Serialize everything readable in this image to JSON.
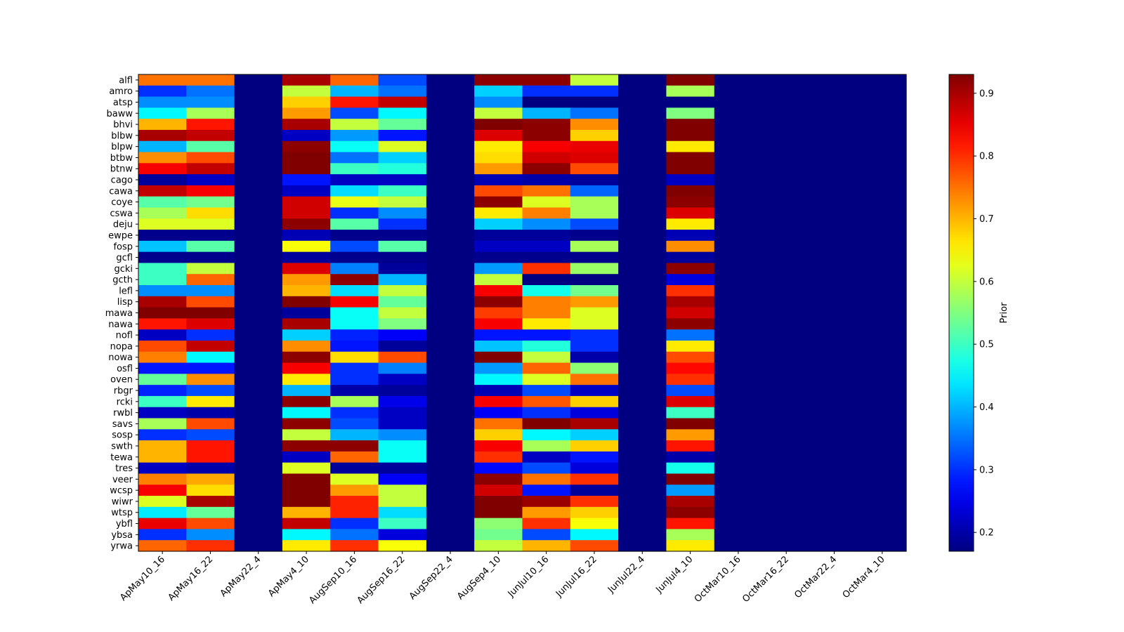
{
  "chart_data": {
    "type": "heatmap",
    "colormap": "jet",
    "colorbar_label": "Prior",
    "colorbar_ticks": [
      0.2,
      0.3,
      0.4,
      0.5,
      0.6,
      0.7,
      0.8,
      0.9
    ],
    "vmin": 0.17,
    "vmax": 0.93,
    "columns": [
      "ApMay10_16",
      "ApMay16_22",
      "ApMay22_4",
      "ApMay4_10",
      "AugSep10_16",
      "AugSep16_22",
      "AugSep22_4",
      "AugSep4_10",
      "JunJul10_16",
      "JunJul16_22",
      "JunJul22_4",
      "JunJul4_10",
      "OctMar10_16",
      "OctMar16_22",
      "OctMar22_4",
      "OctMar4_10"
    ],
    "rows": [
      "alfl",
      "amro",
      "atsp",
      "baww",
      "bhvi",
      "blbw",
      "blpw",
      "btbw",
      "btnw",
      "cago",
      "cawa",
      "coye",
      "cswa",
      "deju",
      "ewpe",
      "fosp",
      "gcfl",
      "gcki",
      "gcth",
      "lefl",
      "lisp",
      "mawa",
      "nawa",
      "nofl",
      "nopa",
      "nowa",
      "osfl",
      "oven",
      "rbgr",
      "rcki",
      "rwbl",
      "savs",
      "sosp",
      "swth",
      "tewa",
      "tres",
      "veer",
      "wcsp",
      "wiwr",
      "wtsp",
      "ybfl",
      "ybsa",
      "yrwa"
    ],
    "values": [
      [
        0.75,
        0.75,
        0.17,
        0.9,
        0.76,
        0.32,
        0.17,
        0.92,
        0.92,
        0.6,
        0.17,
        0.93,
        0.17,
        0.17,
        0.17,
        0.17
      ],
      [
        0.3,
        0.35,
        0.17,
        0.6,
        0.4,
        0.35,
        0.17,
        0.42,
        0.3,
        0.3,
        0.17,
        0.58,
        0.17,
        0.17,
        0.17,
        0.17
      ],
      [
        0.37,
        0.37,
        0.17,
        0.68,
        0.82,
        0.88,
        0.17,
        0.37,
        0.17,
        0.17,
        0.17,
        0.17,
        0.17,
        0.17,
        0.17,
        0.17
      ],
      [
        0.45,
        0.58,
        0.17,
        0.72,
        0.32,
        0.45,
        0.17,
        0.6,
        0.4,
        0.35,
        0.17,
        0.55,
        0.17,
        0.17,
        0.17,
        0.17
      ],
      [
        0.7,
        0.82,
        0.17,
        0.9,
        0.6,
        0.53,
        0.17,
        0.93,
        0.92,
        0.73,
        0.17,
        0.93,
        0.17,
        0.17,
        0.17,
        0.17
      ],
      [
        0.9,
        0.88,
        0.17,
        0.22,
        0.38,
        0.28,
        0.17,
        0.86,
        0.92,
        0.68,
        0.17,
        0.93,
        0.17,
        0.17,
        0.17,
        0.17
      ],
      [
        0.4,
        0.52,
        0.17,
        0.92,
        0.46,
        0.62,
        0.17,
        0.66,
        0.84,
        0.85,
        0.17,
        0.66,
        0.17,
        0.17,
        0.17,
        0.17
      ],
      [
        0.73,
        0.78,
        0.17,
        0.93,
        0.35,
        0.42,
        0.17,
        0.67,
        0.87,
        0.86,
        0.17,
        0.93,
        0.17,
        0.17,
        0.17,
        0.17
      ],
      [
        0.84,
        0.88,
        0.17,
        0.93,
        0.5,
        0.48,
        0.17,
        0.72,
        0.92,
        0.78,
        0.17,
        0.93,
        0.17,
        0.17,
        0.17,
        0.17
      ],
      [
        0.19,
        0.22,
        0.17,
        0.28,
        0.22,
        0.22,
        0.17,
        0.21,
        0.2,
        0.19,
        0.17,
        0.22,
        0.17,
        0.17,
        0.17,
        0.17
      ],
      [
        0.88,
        0.84,
        0.17,
        0.22,
        0.43,
        0.5,
        0.17,
        0.78,
        0.75,
        0.34,
        0.17,
        0.93,
        0.17,
        0.17,
        0.17,
        0.17
      ],
      [
        0.52,
        0.54,
        0.17,
        0.87,
        0.63,
        0.6,
        0.17,
        0.92,
        0.62,
        0.58,
        0.17,
        0.92,
        0.17,
        0.17,
        0.17,
        0.17
      ],
      [
        0.58,
        0.67,
        0.17,
        0.87,
        0.3,
        0.37,
        0.17,
        0.66,
        0.74,
        0.58,
        0.17,
        0.86,
        0.17,
        0.17,
        0.17,
        0.17
      ],
      [
        0.62,
        0.62,
        0.17,
        0.92,
        0.52,
        0.3,
        0.17,
        0.42,
        0.37,
        0.32,
        0.17,
        0.66,
        0.17,
        0.17,
        0.17,
        0.17
      ],
      [
        0.18,
        0.18,
        0.17,
        0.21,
        0.18,
        0.18,
        0.17,
        0.19,
        0.19,
        0.18,
        0.17,
        0.21,
        0.17,
        0.17,
        0.17,
        0.17
      ],
      [
        0.41,
        0.52,
        0.17,
        0.64,
        0.32,
        0.52,
        0.17,
        0.22,
        0.22,
        0.58,
        0.17,
        0.73,
        0.17,
        0.17,
        0.17,
        0.17
      ],
      [
        0.18,
        0.18,
        0.17,
        0.19,
        0.18,
        0.18,
        0.17,
        0.18,
        0.18,
        0.18,
        0.17,
        0.19,
        0.17,
        0.17,
        0.17,
        0.17
      ],
      [
        0.5,
        0.6,
        0.17,
        0.86,
        0.36,
        0.19,
        0.17,
        0.38,
        0.8,
        0.57,
        0.17,
        0.92,
        0.17,
        0.17,
        0.17,
        0.17
      ],
      [
        0.5,
        0.76,
        0.17,
        0.72,
        0.92,
        0.4,
        0.17,
        0.6,
        0.17,
        0.17,
        0.17,
        0.24,
        0.17,
        0.17,
        0.17,
        0.17
      ],
      [
        0.37,
        0.37,
        0.17,
        0.7,
        0.43,
        0.6,
        0.17,
        0.84,
        0.47,
        0.54,
        0.17,
        0.8,
        0.17,
        0.17,
        0.17,
        0.17
      ],
      [
        0.9,
        0.78,
        0.17,
        0.93,
        0.84,
        0.53,
        0.17,
        0.92,
        0.74,
        0.72,
        0.17,
        0.9,
        0.17,
        0.17,
        0.17,
        0.17
      ],
      [
        0.93,
        0.93,
        0.17,
        0.19,
        0.46,
        0.6,
        0.17,
        0.79,
        0.74,
        0.62,
        0.17,
        0.87,
        0.17,
        0.17,
        0.17,
        0.17
      ],
      [
        0.82,
        0.86,
        0.17,
        0.9,
        0.46,
        0.55,
        0.17,
        0.84,
        0.66,
        0.62,
        0.17,
        0.92,
        0.17,
        0.17,
        0.17,
        0.17
      ],
      [
        0.22,
        0.3,
        0.17,
        0.42,
        0.29,
        0.26,
        0.17,
        0.28,
        0.28,
        0.3,
        0.17,
        0.35,
        0.17,
        0.17,
        0.17,
        0.17
      ],
      [
        0.78,
        0.88,
        0.17,
        0.73,
        0.28,
        0.19,
        0.17,
        0.41,
        0.48,
        0.3,
        0.17,
        0.66,
        0.17,
        0.17,
        0.17,
        0.17
      ],
      [
        0.74,
        0.45,
        0.17,
        0.92,
        0.67,
        0.78,
        0.17,
        0.93,
        0.6,
        0.2,
        0.17,
        0.78,
        0.17,
        0.17,
        0.17,
        0.17
      ],
      [
        0.28,
        0.28,
        0.17,
        0.84,
        0.3,
        0.36,
        0.17,
        0.38,
        0.76,
        0.56,
        0.17,
        0.83,
        0.17,
        0.17,
        0.17,
        0.17
      ],
      [
        0.53,
        0.73,
        0.17,
        0.66,
        0.3,
        0.22,
        0.17,
        0.45,
        0.62,
        0.75,
        0.17,
        0.8,
        0.17,
        0.17,
        0.17,
        0.17
      ],
      [
        0.29,
        0.32,
        0.17,
        0.4,
        0.2,
        0.19,
        0.17,
        0.21,
        0.32,
        0.22,
        0.17,
        0.32,
        0.17,
        0.17,
        0.17,
        0.17
      ],
      [
        0.5,
        0.66,
        0.17,
        0.92,
        0.58,
        0.25,
        0.17,
        0.84,
        0.77,
        0.68,
        0.17,
        0.86,
        0.17,
        0.17,
        0.17,
        0.17
      ],
      [
        0.22,
        0.2,
        0.17,
        0.45,
        0.3,
        0.22,
        0.17,
        0.26,
        0.3,
        0.24,
        0.17,
        0.5,
        0.17,
        0.17,
        0.17,
        0.17
      ],
      [
        0.58,
        0.78,
        0.17,
        0.92,
        0.32,
        0.22,
        0.17,
        0.75,
        0.93,
        0.9,
        0.17,
        0.93,
        0.17,
        0.17,
        0.17,
        0.17
      ],
      [
        0.3,
        0.32,
        0.17,
        0.6,
        0.4,
        0.37,
        0.17,
        0.68,
        0.45,
        0.42,
        0.17,
        0.72,
        0.17,
        0.17,
        0.17,
        0.17
      ],
      [
        0.7,
        0.82,
        0.17,
        0.92,
        0.92,
        0.46,
        0.17,
        0.84,
        0.58,
        0.68,
        0.17,
        0.82,
        0.17,
        0.17,
        0.17,
        0.17
      ],
      [
        0.7,
        0.82,
        0.17,
        0.22,
        0.76,
        0.46,
        0.17,
        0.8,
        0.22,
        0.28,
        0.17,
        0.2,
        0.17,
        0.17,
        0.17,
        0.17
      ],
      [
        0.22,
        0.2,
        0.17,
        0.62,
        0.19,
        0.19,
        0.17,
        0.27,
        0.32,
        0.24,
        0.17,
        0.47,
        0.17,
        0.17,
        0.17,
        0.17
      ],
      [
        0.74,
        0.71,
        0.17,
        0.93,
        0.62,
        0.26,
        0.17,
        0.92,
        0.75,
        0.8,
        0.17,
        0.93,
        0.17,
        0.17,
        0.17,
        0.17
      ],
      [
        0.84,
        0.67,
        0.17,
        0.93,
        0.72,
        0.6,
        0.17,
        0.87,
        0.28,
        0.19,
        0.17,
        0.38,
        0.17,
        0.17,
        0.17,
        0.17
      ],
      [
        0.62,
        0.9,
        0.17,
        0.93,
        0.81,
        0.6,
        0.17,
        0.93,
        0.91,
        0.8,
        0.17,
        0.9,
        0.17,
        0.17,
        0.17,
        0.17
      ],
      [
        0.44,
        0.53,
        0.17,
        0.7,
        0.81,
        0.43,
        0.17,
        0.93,
        0.72,
        0.68,
        0.17,
        0.92,
        0.17,
        0.17,
        0.17,
        0.17
      ],
      [
        0.85,
        0.78,
        0.17,
        0.88,
        0.3,
        0.5,
        0.17,
        0.56,
        0.8,
        0.64,
        0.17,
        0.82,
        0.17,
        0.17,
        0.17,
        0.17
      ],
      [
        0.3,
        0.37,
        0.17,
        0.45,
        0.35,
        0.24,
        0.17,
        0.54,
        0.32,
        0.45,
        0.17,
        0.58,
        0.17,
        0.17,
        0.17,
        0.17
      ],
      [
        0.76,
        0.8,
        0.17,
        0.66,
        0.8,
        0.64,
        0.17,
        0.6,
        0.7,
        0.78,
        0.17,
        0.66,
        0.17,
        0.17,
        0.17,
        0.17
      ]
    ]
  }
}
